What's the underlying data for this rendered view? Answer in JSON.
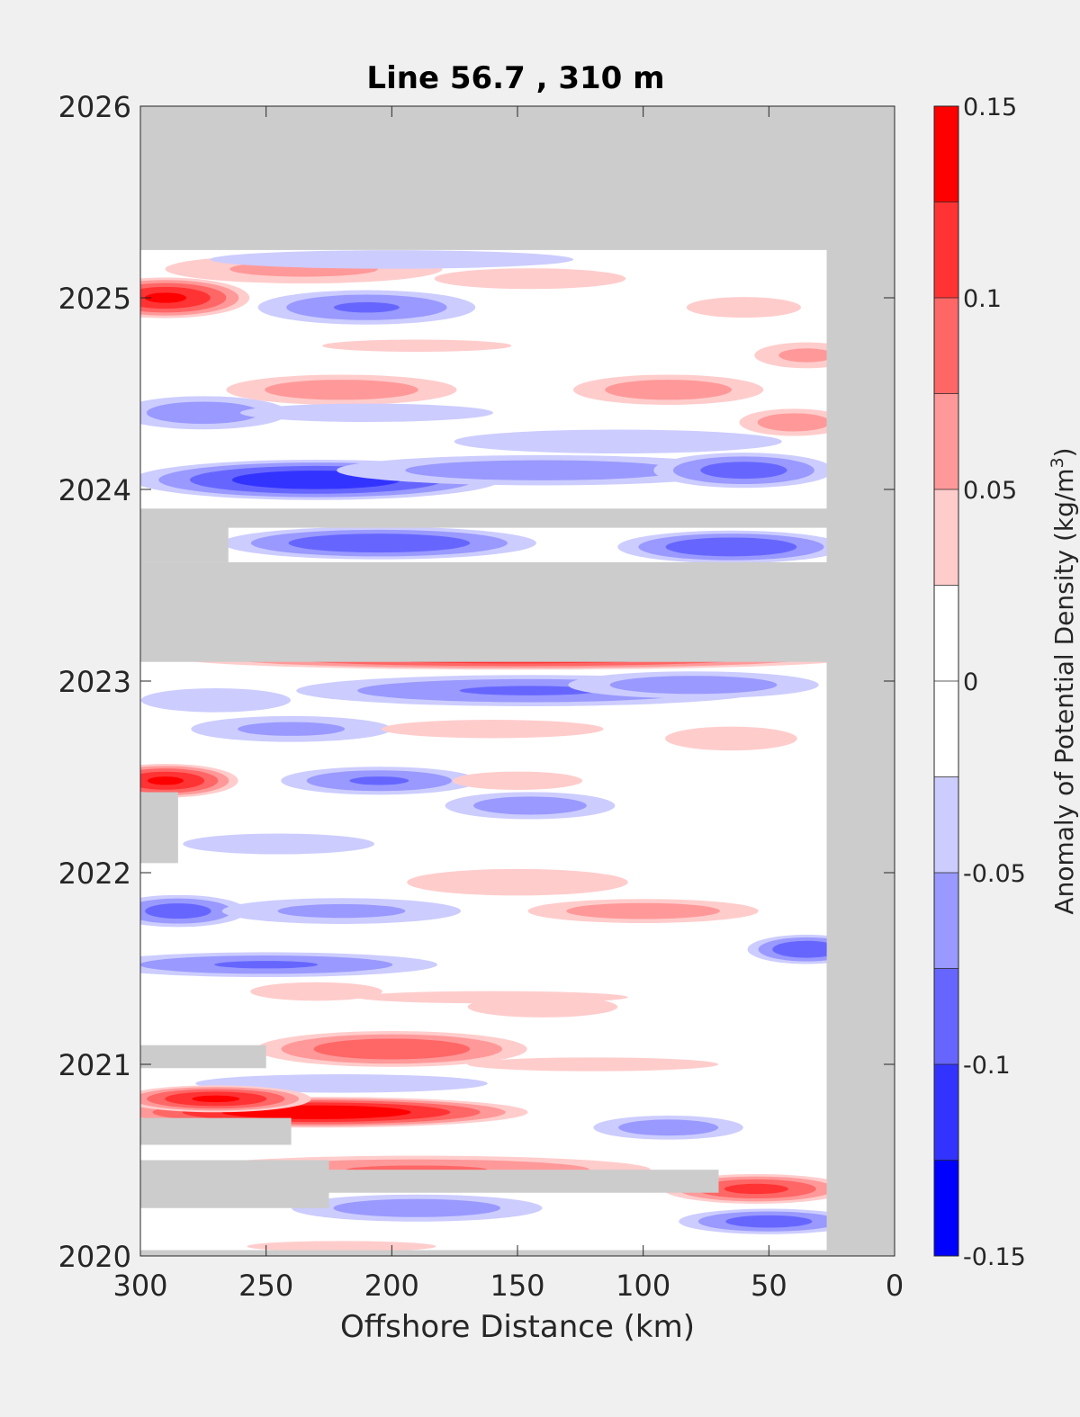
{
  "chart_data": {
    "type": "heatmap",
    "title": "Line 56.7 , 310 m",
    "xlabel": "Offshore Distance (km)",
    "ylabel": "",
    "xlim": [
      300,
      0
    ],
    "x_reversed": true,
    "ylim": [
      2020,
      2026
    ],
    "x_ticks": [
      300,
      250,
      200,
      150,
      100,
      50,
      0
    ],
    "x_tick_labels": [
      "300",
      "250",
      "200",
      "150",
      "100",
      "50",
      "0"
    ],
    "y_ticks": [
      2020,
      2021,
      2022,
      2023,
      2024,
      2025,
      2026
    ],
    "y_tick_labels": [
      "2020",
      "2021",
      "2022",
      "2023",
      "2024",
      "2025",
      "2026"
    ],
    "colorbar": {
      "label_main": "Anomaly of Potential Density (kg/m",
      "label_sup": "3",
      "label_tail": ")",
      "ticks": [
        -0.15,
        -0.1,
        -0.05,
        0,
        0.05,
        0.1,
        0.15
      ],
      "tick_labels": [
        "-0.15",
        "-0.1",
        "-0.05",
        "0",
        "0.05",
        "0.1",
        "0.15"
      ],
      "levels": [
        -0.15,
        -0.125,
        -0.1,
        -0.075,
        -0.05,
        -0.025,
        0.025,
        0.05,
        0.075,
        0.1,
        0.125,
        0.15
      ],
      "colors": [
        "#0000ff",
        "#3333ff",
        "#6666ff",
        "#9999ff",
        "#ccccff",
        "#ffffff",
        "#ffcccc",
        "#ff9999",
        "#ff6666",
        "#ff3333",
        "#ff0000"
      ]
    },
    "no_data_color": "#cccccc",
    "data_extent": {
      "x_min": 27,
      "x_max": 300,
      "y_min": 2020.03,
      "y_max": 2025.25
    },
    "nodata_bands": [
      {
        "y0": 2023.1,
        "y1": 2023.62,
        "x0": 0,
        "x1": 300
      },
      {
        "y0": 2023.62,
        "y1": 2023.87,
        "x0": 265,
        "x1": 300
      },
      {
        "y0": 2023.8,
        "y1": 2023.9,
        "x0": 0,
        "x1": 300
      },
      {
        "y0": 2022.05,
        "y1": 2022.42,
        "x0": 285,
        "x1": 300
      },
      {
        "y0": 2020.98,
        "y1": 2021.1,
        "x0": 250,
        "x1": 300
      },
      {
        "y0": 2020.58,
        "y1": 2020.72,
        "x0": 240,
        "x1": 300
      },
      {
        "y0": 2020.25,
        "y1": 2020.5,
        "x0": 225,
        "x1": 300
      },
      {
        "y0": 2020.33,
        "y1": 2020.45,
        "x0": 70,
        "x1": 225
      }
    ],
    "anomaly_features": [
      {
        "x": 290,
        "y": 2025.0,
        "rx": 35,
        "ry": 0.09,
        "v": 0.13
      },
      {
        "x": 235,
        "y": 2025.15,
        "rx": 70,
        "ry": 0.07,
        "v": 0.06
      },
      {
        "x": 200,
        "y": 2025.2,
        "rx": 100,
        "ry": 0.04,
        "v": -0.05
      },
      {
        "x": 145,
        "y": 2025.1,
        "rx": 60,
        "ry": 0.06,
        "v": 0.04
      },
      {
        "x": 210,
        "y": 2024.95,
        "rx": 50,
        "ry": 0.08,
        "v": -0.08
      },
      {
        "x": 60,
        "y": 2024.95,
        "rx": 35,
        "ry": 0.06,
        "v": 0.04
      },
      {
        "x": 190,
        "y": 2024.75,
        "rx": 90,
        "ry": 0.05,
        "v": 0.03
      },
      {
        "x": 35,
        "y": 2024.7,
        "rx": 25,
        "ry": 0.06,
        "v": 0.06
      },
      {
        "x": 220,
        "y": 2024.52,
        "rx": 55,
        "ry": 0.07,
        "v": 0.07
      },
      {
        "x": 90,
        "y": 2024.52,
        "rx": 45,
        "ry": 0.07,
        "v": 0.07
      },
      {
        "x": 275,
        "y": 2024.4,
        "rx": 40,
        "ry": 0.08,
        "v": -0.07
      },
      {
        "x": 210,
        "y": 2024.4,
        "rx": 80,
        "ry": 0.05,
        "v": -0.04
      },
      {
        "x": 40,
        "y": 2024.35,
        "rx": 25,
        "ry": 0.06,
        "v": 0.07
      },
      {
        "x": 110,
        "y": 2024.25,
        "rx": 90,
        "ry": 0.06,
        "v": -0.05
      },
      {
        "x": 230,
        "y": 2024.05,
        "rx": 80,
        "ry": 0.09,
        "v": -0.12
      },
      {
        "x": 140,
        "y": 2024.1,
        "rx": 100,
        "ry": 0.07,
        "v": -0.07
      },
      {
        "x": 60,
        "y": 2024.1,
        "rx": 40,
        "ry": 0.08,
        "v": -0.09
      },
      {
        "x": 205,
        "y": 2023.72,
        "rx": 70,
        "ry": 0.07,
        "v": -0.1
      },
      {
        "x": 65,
        "y": 2023.7,
        "rx": 50,
        "ry": 0.07,
        "v": -0.1
      },
      {
        "x": 150,
        "y": 2023.12,
        "rx": 150,
        "ry": 0.04,
        "v": 0.12
      },
      {
        "x": 145,
        "y": 2022.95,
        "rx": 110,
        "ry": 0.07,
        "v": -0.08
      },
      {
        "x": 80,
        "y": 2022.98,
        "rx": 60,
        "ry": 0.06,
        "v": -0.07
      },
      {
        "x": 270,
        "y": 2022.9,
        "rx": 40,
        "ry": 0.06,
        "v": -0.05
      },
      {
        "x": 240,
        "y": 2022.75,
        "rx": 50,
        "ry": 0.06,
        "v": -0.06
      },
      {
        "x": 160,
        "y": 2022.75,
        "rx": 70,
        "ry": 0.05,
        "v": 0.04
      },
      {
        "x": 65,
        "y": 2022.7,
        "rx": 35,
        "ry": 0.06,
        "v": 0.05
      },
      {
        "x": 290,
        "y": 2022.48,
        "rx": 30,
        "ry": 0.07,
        "v": 0.13
      },
      {
        "x": 205,
        "y": 2022.48,
        "rx": 45,
        "ry": 0.06,
        "v": -0.08
      },
      {
        "x": 150,
        "y": 2022.48,
        "rx": 40,
        "ry": 0.05,
        "v": 0.04
      },
      {
        "x": 145,
        "y": 2022.35,
        "rx": 40,
        "ry": 0.06,
        "v": -0.07
      },
      {
        "x": 245,
        "y": 2022.15,
        "rx": 60,
        "ry": 0.06,
        "v": -0.04
      },
      {
        "x": 150,
        "y": 2021.95,
        "rx": 60,
        "ry": 0.07,
        "v": 0.05
      },
      {
        "x": 285,
        "y": 2021.8,
        "rx": 30,
        "ry": 0.07,
        "v": -0.09
      },
      {
        "x": 220,
        "y": 2021.8,
        "rx": 60,
        "ry": 0.06,
        "v": -0.06
      },
      {
        "x": 100,
        "y": 2021.8,
        "rx": 55,
        "ry": 0.05,
        "v": 0.07
      },
      {
        "x": 35,
        "y": 2021.6,
        "rx": 25,
        "ry": 0.06,
        "v": -0.1
      },
      {
        "x": 250,
        "y": 2021.52,
        "rx": 80,
        "ry": 0.05,
        "v": -0.08
      },
      {
        "x": 160,
        "y": 2021.35,
        "rx": 130,
        "ry": 0.05,
        "v": 0.03
      },
      {
        "x": 230,
        "y": 2021.38,
        "rx": 35,
        "ry": 0.04,
        "v": 0.05
      },
      {
        "x": 140,
        "y": 2021.3,
        "rx": 40,
        "ry": 0.05,
        "v": 0.05
      },
      {
        "x": 200,
        "y": 2021.08,
        "rx": 60,
        "ry": 0.08,
        "v": 0.1
      },
      {
        "x": 120,
        "y": 2021.0,
        "rx": 120,
        "ry": 0.06,
        "v": 0.03
      },
      {
        "x": 220,
        "y": 2020.9,
        "rx": 80,
        "ry": 0.04,
        "v": -0.05
      },
      {
        "x": 230,
        "y": 2020.75,
        "rx": 90,
        "ry": 0.06,
        "v": 0.15
      },
      {
        "x": 270,
        "y": 2020.82,
        "rx": 40,
        "ry": 0.05,
        "v": 0.13
      },
      {
        "x": 90,
        "y": 2020.67,
        "rx": 35,
        "ry": 0.05,
        "v": -0.07
      },
      {
        "x": 190,
        "y": 2020.45,
        "rx": 110,
        "ry": 0.06,
        "v": 0.08
      },
      {
        "x": 55,
        "y": 2020.35,
        "rx": 40,
        "ry": 0.06,
        "v": 0.11
      },
      {
        "x": 190,
        "y": 2020.25,
        "rx": 60,
        "ry": 0.06,
        "v": -0.07
      },
      {
        "x": 50,
        "y": 2020.18,
        "rx": 40,
        "ry": 0.05,
        "v": -0.09
      },
      {
        "x": 220,
        "y": 2020.05,
        "rx": 90,
        "ry": 0.04,
        "v": 0.03
      }
    ]
  }
}
